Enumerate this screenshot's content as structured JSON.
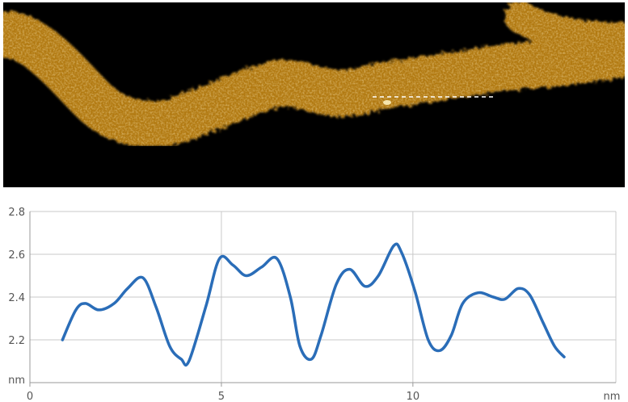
{
  "chart_data": {
    "type": "line",
    "title": "",
    "xlabel": "nm",
    "ylabel": "nm",
    "xlim": [
      0,
      15.3
    ],
    "ylim": [
      2.0,
      2.8
    ],
    "xticks": [
      0,
      5,
      10
    ],
    "xtick_labels": [
      "0",
      "5",
      "10"
    ],
    "yticks": [
      2.2,
      2.4,
      2.6,
      2.8
    ],
    "ytick_labels": [
      "2.2",
      "2.4",
      "2.6",
      "2.8"
    ],
    "grid": true,
    "series": [
      {
        "color": "#2a6db8",
        "x": [
          0.85,
          1.2,
          1.45,
          1.8,
          2.2,
          2.55,
          2.95,
          3.3,
          3.65,
          3.95,
          4.15,
          4.6,
          4.95,
          5.3,
          5.65,
          6.05,
          6.45,
          6.8,
          7.05,
          7.35,
          7.6,
          8.0,
          8.35,
          8.75,
          9.1,
          9.5,
          9.7,
          10.05,
          10.4,
          10.7,
          11.0,
          11.3,
          11.7,
          12.1,
          12.4,
          12.75,
          13.05,
          13.4,
          13.7,
          13.95
        ],
        "y": [
          2.2,
          2.34,
          2.37,
          2.34,
          2.37,
          2.44,
          2.49,
          2.35,
          2.17,
          2.11,
          2.1,
          2.36,
          2.58,
          2.55,
          2.5,
          2.54,
          2.58,
          2.4,
          2.17,
          2.11,
          2.22,
          2.46,
          2.53,
          2.45,
          2.5,
          2.64,
          2.61,
          2.43,
          2.2,
          2.15,
          2.22,
          2.37,
          2.42,
          2.4,
          2.39,
          2.44,
          2.41,
          2.28,
          2.17,
          2.12
        ]
      }
    ]
  }
}
